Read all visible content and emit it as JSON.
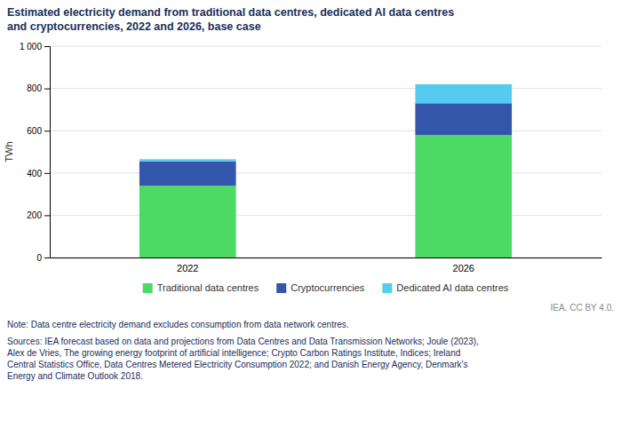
{
  "chart_data": {
    "type": "bar",
    "stacked": true,
    "title": "Estimated electricity demand from traditional data centres, dedicated AI data centres\nand cryptocurrencies, 2022 and 2026, base case",
    "y_label": "TWh",
    "categories": [
      "2022",
      "2026"
    ],
    "series": [
      {
        "name": "Traditional data centres",
        "color": "#4cd964",
        "values": [
          340,
          580
        ]
      },
      {
        "name": "Cryptocurrencies",
        "color": "#3355aa",
        "values": [
          115,
          150
        ]
      },
      {
        "name": "Dedicated AI data centres",
        "color": "#55ccee",
        "values": [
          10,
          90
        ]
      }
    ],
    "ylim": [
      0,
      1000
    ],
    "yticks": [
      0,
      200,
      400,
      600,
      800,
      {
        "value": 1000,
        "label": "1 000"
      }
    ],
    "grid": true,
    "legend": "bottom",
    "annotations": [
      "IEA. CC BY 4.0.",
      "Note: Data centre electricity demand excludes consumption from data network centres.",
      "Sources: IEA forecast based on data and projections from Data Centres and Data Transmission Networks; Joule (2023),\nAlex de Vries, The growing energy footprint of artificial intelligence; Crypto Carbon Ratings Institute, Indices; Ireland\nCentral Statistics Office, Data Centres Metered Electricity Consumption 2022; and Danish Energy Agency, Denmark's\nEnergy and Climate Outlook 2018."
    ]
  }
}
